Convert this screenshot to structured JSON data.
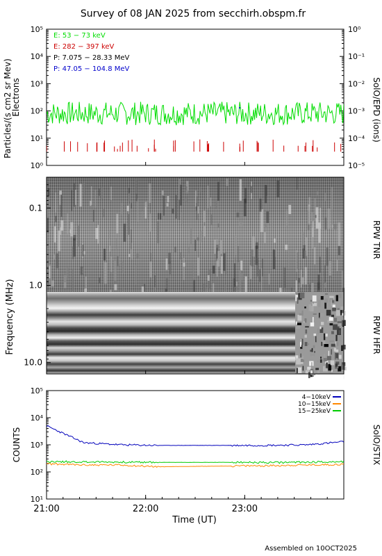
{
  "title": "Survey of 08 JAN 2025 from secchirh.obspm.fr",
  "footer": "Assembled on 10OCT2025",
  "chart_data": [
    {
      "panel": "epd",
      "type": "line",
      "ylabel": "Particles/(s cm2 sr Mev)",
      "ylabel_sub": "Electrons",
      "ylabel_right": "SolO/EPD (ions)",
      "yscale": "log",
      "ylim": [
        1,
        100000
      ],
      "yticks": [
        "10⁰",
        "10¹",
        "10²",
        "10³",
        "10⁴",
        "10⁵"
      ],
      "ylim_right": [
        1e-05,
        1
      ],
      "yticks_right": [
        "10⁻⁵",
        "10⁻⁴",
        "10⁻³",
        "10⁻²",
        "10⁻¹",
        "10⁰"
      ],
      "legend_position": "top-left",
      "series": [
        {
          "name": "E: 53 − 73 keV",
          "color": "#00dd00",
          "typical": 100,
          "min": 30,
          "max": 220
        },
        {
          "name": "E: 282 − 397 keV",
          "color": "#cc0000",
          "typical": 6,
          "min": 4,
          "max": 9,
          "sparse": true
        },
        {
          "name": "P: 7.075 − 28.33 MeV",
          "color": "#000000"
        },
        {
          "name": "P: 47.05 − 104.8 MeV",
          "color": "#0000cc"
        }
      ]
    },
    {
      "panel": "rpw",
      "type": "heatmap",
      "ylabel": "Frequency (MHz)",
      "yscale": "log",
      "yticks": [
        "0.1",
        "1.0",
        "10.0"
      ],
      "ylim": [
        0.04,
        14
      ],
      "label_tnr": "RPW TNR",
      "label_hfr": "RPW HFR",
      "colormap": "grayscale",
      "data_gap_start_hours": 23.5
    },
    {
      "panel": "stix",
      "type": "line",
      "ylabel": "COUNTS",
      "ylabel_right": "SolO/STIX",
      "xlabel": "Time (UT)",
      "xlim_hours": [
        21,
        24
      ],
      "xticks": [
        "21:00",
        "22:00",
        "23:00"
      ],
      "yscale": "log",
      "ylim": [
        10,
        100000
      ],
      "yticks": [
        "10¹",
        "10²",
        "10³",
        "10⁴",
        "10⁵"
      ],
      "legend_position": "top-right",
      "series": [
        {
          "name": "4−10keV",
          "color": "#0000bb",
          "values": [
            5000,
            1200,
            1000,
            950,
            950,
            950,
            960,
            1000,
            1300
          ]
        },
        {
          "name": "10−15keV",
          "color": "#ff8800",
          "values": [
            200,
            180,
            180,
            155,
            160,
            165,
            170,
            180,
            190
          ]
        },
        {
          "name": "15−25keV",
          "color": "#00cc00",
          "values": [
            240,
            235,
            230,
            225,
            225,
            225,
            220,
            230,
            240
          ]
        }
      ]
    }
  ]
}
